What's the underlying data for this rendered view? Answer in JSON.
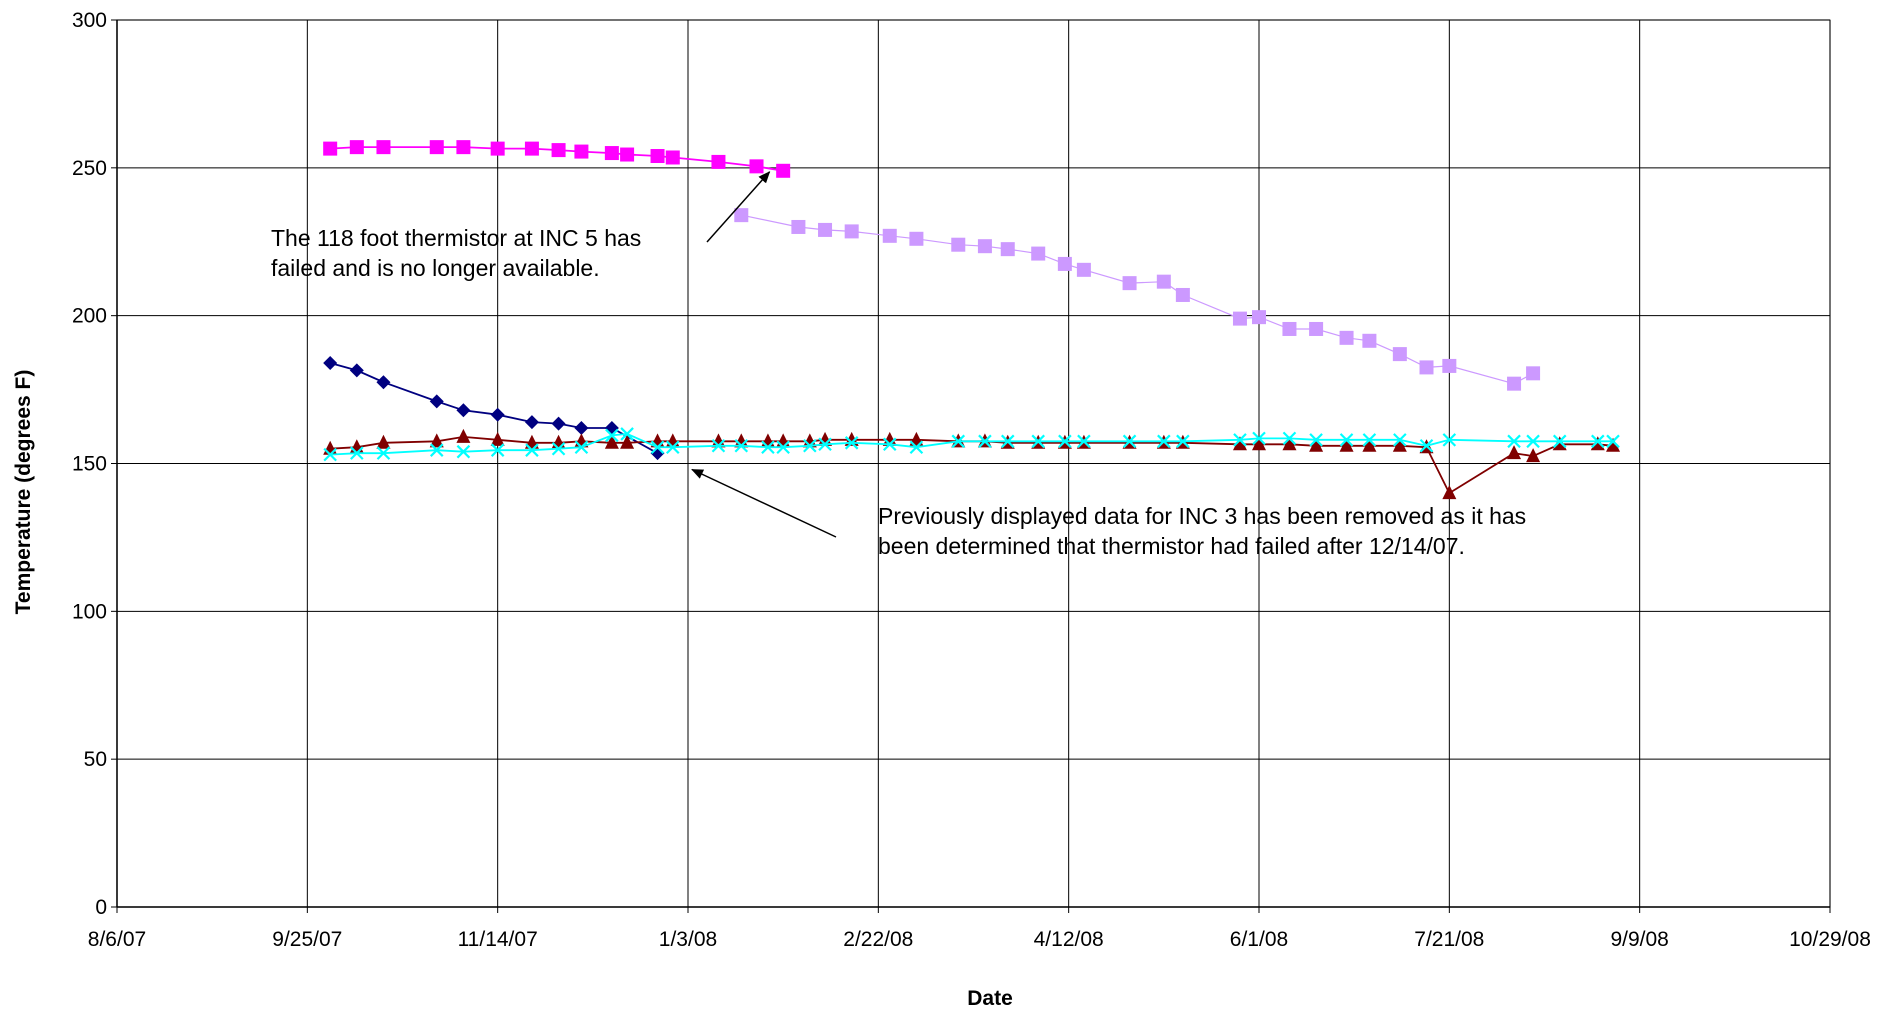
{
  "chart_data": {
    "type": "line",
    "title": "",
    "xlabel": "Date",
    "ylabel": "Temperature (degrees F)",
    "xlim": [
      "8/6/07",
      "10/29/08"
    ],
    "ylim": [
      0,
      300
    ],
    "x_tick_labels": [
      "8/6/07",
      "9/25/07",
      "11/14/07",
      "1/3/08",
      "2/22/08",
      "4/12/08",
      "6/1/08",
      "7/21/08",
      "9/9/08",
      "10/29/08"
    ],
    "y_tick_labels": [
      "0",
      "50",
      "100",
      "150",
      "200",
      "250",
      "300"
    ],
    "grid": true,
    "legend": "none",
    "annotations": [
      {
        "lines": [
          "The 118 foot thermistor at INC 5 has",
          "failed and is no longer available."
        ],
        "points_to": {
          "date": "2008-01-26",
          "y": 250
        }
      },
      {
        "lines": [
          "Previously displayed data for INC 3 has been removed as it has",
          "been determined that thermistor had failed after 12/14/07."
        ],
        "points_to": {
          "date": "2008-01-03",
          "y": 150
        }
      }
    ],
    "series": [
      {
        "color": "#ff00ff",
        "marker": "square",
        "line": true,
        "points": [
          {
            "date": "2007-10-01",
            "y": 256.5
          },
          {
            "date": "2007-10-08",
            "y": 257
          },
          {
            "date": "2007-10-15",
            "y": 257
          },
          {
            "date": "2007-10-29",
            "y": 257
          },
          {
            "date": "2007-11-05",
            "y": 257
          },
          {
            "date": "2007-11-14",
            "y": 256.5
          },
          {
            "date": "2007-11-23",
            "y": 256.5
          },
          {
            "date": "2007-11-30",
            "y": 256
          },
          {
            "date": "2007-12-06",
            "y": 255.5
          },
          {
            "date": "2007-12-14",
            "y": 255
          },
          {
            "date": "2007-12-18",
            "y": 254.5
          },
          {
            "date": "2007-12-26",
            "y": 254
          },
          {
            "date": "2007-12-30",
            "y": 253.5
          },
          {
            "date": "2008-01-11",
            "y": 252
          },
          {
            "date": "2008-01-21",
            "y": 250.5
          },
          {
            "date": "2008-01-28",
            "y": 249
          }
        ]
      },
      {
        "color": "#cc99ff",
        "marker": "square",
        "line": true,
        "points": [
          {
            "date": "2008-01-17",
            "y": 234
          },
          {
            "date": "2008-02-01",
            "y": 230
          },
          {
            "date": "2008-02-08",
            "y": 229
          },
          {
            "date": "2008-02-15",
            "y": 228.5
          },
          {
            "date": "2008-02-25",
            "y": 227
          },
          {
            "date": "2008-03-03",
            "y": 226
          },
          {
            "date": "2008-03-14",
            "y": 224
          },
          {
            "date": "2008-03-21",
            "y": 223.5
          },
          {
            "date": "2008-03-27",
            "y": 222.5
          },
          {
            "date": "2008-04-04",
            "y": 221
          },
          {
            "date": "2008-04-11",
            "y": 217.5
          },
          {
            "date": "2008-04-16",
            "y": 215.5
          },
          {
            "date": "2008-04-28",
            "y": 211
          },
          {
            "date": "2008-05-07",
            "y": 211.5
          },
          {
            "date": "2008-05-12",
            "y": 207
          },
          {
            "date": "2008-05-27",
            "y": 199
          },
          {
            "date": "2008-06-01",
            "y": 199.5
          },
          {
            "date": "2008-06-09",
            "y": 195.5
          },
          {
            "date": "2008-06-16",
            "y": 195.5
          },
          {
            "date": "2008-06-24",
            "y": 192.5
          },
          {
            "date": "2008-06-30",
            "y": 191.5
          },
          {
            "date": "2008-07-08",
            "y": 187
          },
          {
            "date": "2008-07-15",
            "y": 182.5
          },
          {
            "date": "2008-07-21",
            "y": 183
          },
          {
            "date": "2008-08-07",
            "y": 177
          },
          {
            "date": "2008-08-12",
            "y": 180.5
          }
        ]
      },
      {
        "color": "#000080",
        "marker": "diamond",
        "line": true,
        "points": [
          {
            "date": "2007-10-01",
            "y": 184
          },
          {
            "date": "2007-10-08",
            "y": 181.5
          },
          {
            "date": "2007-10-15",
            "y": 177.5
          },
          {
            "date": "2007-10-29",
            "y": 171
          },
          {
            "date": "2007-11-05",
            "y": 168
          },
          {
            "date": "2007-11-14",
            "y": 166.5
          },
          {
            "date": "2007-11-23",
            "y": 164
          },
          {
            "date": "2007-11-30",
            "y": 163.5
          },
          {
            "date": "2007-12-06",
            "y": 162
          },
          {
            "date": "2007-12-14",
            "y": 162
          },
          {
            "date": "2007-12-26",
            "y": 153.5
          }
        ]
      },
      {
        "color": "#800000",
        "marker": "triangle",
        "line": true,
        "points": [
          {
            "date": "2007-10-01",
            "y": 155
          },
          {
            "date": "2007-10-08",
            "y": 155.5
          },
          {
            "date": "2007-10-15",
            "y": 157
          },
          {
            "date": "2007-10-29",
            "y": 157.5
          },
          {
            "date": "2007-11-05",
            "y": 159
          },
          {
            "date": "2007-11-14",
            "y": 158
          },
          {
            "date": "2007-11-23",
            "y": 157
          },
          {
            "date": "2007-11-30",
            "y": 157
          },
          {
            "date": "2007-12-06",
            "y": 157.5
          },
          {
            "date": "2007-12-14",
            "y": 157
          },
          {
            "date": "2007-12-18",
            "y": 157
          },
          {
            "date": "2007-12-26",
            "y": 157.5
          },
          {
            "date": "2007-12-30",
            "y": 157.5
          },
          {
            "date": "2008-01-11",
            "y": 157.5
          },
          {
            "date": "2008-01-17",
            "y": 157.5
          },
          {
            "date": "2008-01-24",
            "y": 157.5
          },
          {
            "date": "2008-01-28",
            "y": 157.5
          },
          {
            "date": "2008-02-04",
            "y": 157.5
          },
          {
            "date": "2008-02-08",
            "y": 158
          },
          {
            "date": "2008-02-15",
            "y": 158
          },
          {
            "date": "2008-02-25",
            "y": 158
          },
          {
            "date": "2008-03-03",
            "y": 158
          },
          {
            "date": "2008-03-14",
            "y": 157.5
          },
          {
            "date": "2008-03-21",
            "y": 157.5
          },
          {
            "date": "2008-03-27",
            "y": 157
          },
          {
            "date": "2008-04-04",
            "y": 157
          },
          {
            "date": "2008-04-11",
            "y": 157
          },
          {
            "date": "2008-04-16",
            "y": 157
          },
          {
            "date": "2008-04-28",
            "y": 157
          },
          {
            "date": "2008-05-07",
            "y": 157
          },
          {
            "date": "2008-05-12",
            "y": 157
          },
          {
            "date": "2008-05-27",
            "y": 156.5
          },
          {
            "date": "2008-06-01",
            "y": 156.5
          },
          {
            "date": "2008-06-09",
            "y": 156.5
          },
          {
            "date": "2008-06-16",
            "y": 156
          },
          {
            "date": "2008-06-24",
            "y": 156
          },
          {
            "date": "2008-06-30",
            "y": 156
          },
          {
            "date": "2008-07-08",
            "y": 156
          },
          {
            "date": "2008-07-15",
            "y": 155.5
          },
          {
            "date": "2008-07-21",
            "y": 140
          },
          {
            "date": "2008-08-07",
            "y": 153.5
          },
          {
            "date": "2008-08-12",
            "y": 152.5
          },
          {
            "date": "2008-08-19",
            "y": 156.5
          },
          {
            "date": "2008-08-29",
            "y": 156.5
          },
          {
            "date": "2008-09-02",
            "y": 156
          }
        ]
      },
      {
        "color": "#00ffff",
        "marker": "x",
        "line": true,
        "points": [
          {
            "date": "2007-10-01",
            "y": 153
          },
          {
            "date": "2007-10-08",
            "y": 153.5
          },
          {
            "date": "2007-10-15",
            "y": 153.5
          },
          {
            "date": "2007-10-29",
            "y": 154.5
          },
          {
            "date": "2007-11-05",
            "y": 154
          },
          {
            "date": "2007-11-14",
            "y": 154.5
          },
          {
            "date": "2007-11-23",
            "y": 154.5
          },
          {
            "date": "2007-11-30",
            "y": 155
          },
          {
            "date": "2007-12-06",
            "y": 155.5
          },
          {
            "date": "2007-12-14",
            "y": 159.5
          },
          {
            "date": "2007-12-18",
            "y": 160
          },
          {
            "date": "2007-12-26",
            "y": 155.5
          },
          {
            "date": "2007-12-30",
            "y": 155.5
          },
          {
            "date": "2008-01-11",
            "y": 156
          },
          {
            "date": "2008-01-17",
            "y": 156
          },
          {
            "date": "2008-01-24",
            "y": 155.5
          },
          {
            "date": "2008-01-28",
            "y": 155.5
          },
          {
            "date": "2008-02-04",
            "y": 156
          },
          {
            "date": "2008-02-08",
            "y": 156.5
          },
          {
            "date": "2008-02-15",
            "y": 157
          },
          {
            "date": "2008-02-25",
            "y": 156.5
          },
          {
            "date": "2008-03-03",
            "y": 155.5
          },
          {
            "date": "2008-03-14",
            "y": 157.5
          },
          {
            "date": "2008-03-21",
            "y": 157.5
          },
          {
            "date": "2008-03-27",
            "y": 157.5
          },
          {
            "date": "2008-04-04",
            "y": 157.5
          },
          {
            "date": "2008-04-11",
            "y": 157.5
          },
          {
            "date": "2008-04-16",
            "y": 157.5
          },
          {
            "date": "2008-04-28",
            "y": 157.5
          },
          {
            "date": "2008-05-07",
            "y": 157.5
          },
          {
            "date": "2008-05-12",
            "y": 157.5
          },
          {
            "date": "2008-05-27",
            "y": 158
          },
          {
            "date": "2008-06-01",
            "y": 158.5
          },
          {
            "date": "2008-06-09",
            "y": 158.5
          },
          {
            "date": "2008-06-16",
            "y": 158
          },
          {
            "date": "2008-06-24",
            "y": 158
          },
          {
            "date": "2008-06-30",
            "y": 158
          },
          {
            "date": "2008-07-08",
            "y": 158
          },
          {
            "date": "2008-07-15",
            "y": 156
          },
          {
            "date": "2008-07-21",
            "y": 158
          },
          {
            "date": "2008-08-07",
            "y": 157.5
          },
          {
            "date": "2008-08-12",
            "y": 157.5
          },
          {
            "date": "2008-08-19",
            "y": 157.5
          },
          {
            "date": "2008-08-29",
            "y": 157.5
          },
          {
            "date": "2008-09-02",
            "y": 157.5
          }
        ]
      }
    ]
  }
}
